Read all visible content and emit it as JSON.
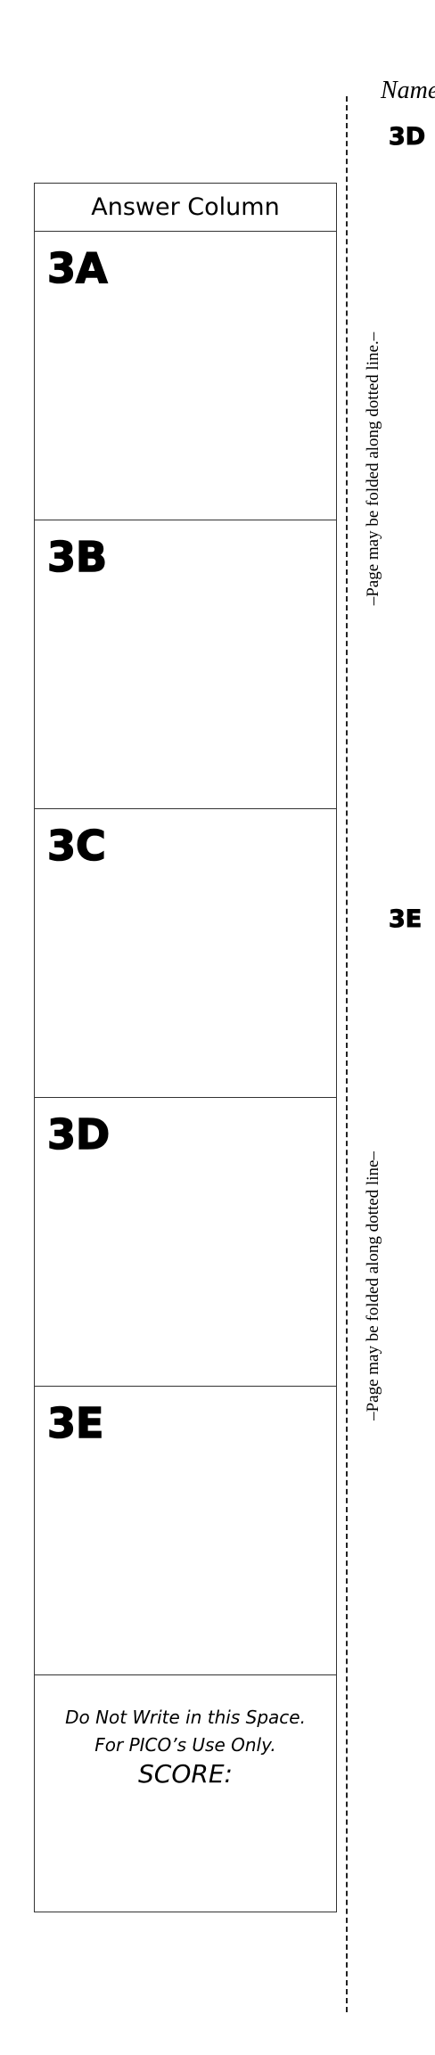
{
  "header": {
    "name_label": "Name"
  },
  "answer_column": {
    "title": "Answer Column",
    "cells": [
      "3A",
      "3B",
      "3C",
      "3D",
      "3E"
    ],
    "score_box": {
      "line1": "Do Not Write in this Space.",
      "line2": "For PICO’s Use Only.",
      "line3": "SCORE:"
    }
  },
  "fold": {
    "text": "–Page may be folded along dotted line.–",
    "text2": "–Page may be folded along dotted line–"
  },
  "questions": [
    {
      "label": "3D"
    },
    {
      "label": "3E"
    }
  ]
}
